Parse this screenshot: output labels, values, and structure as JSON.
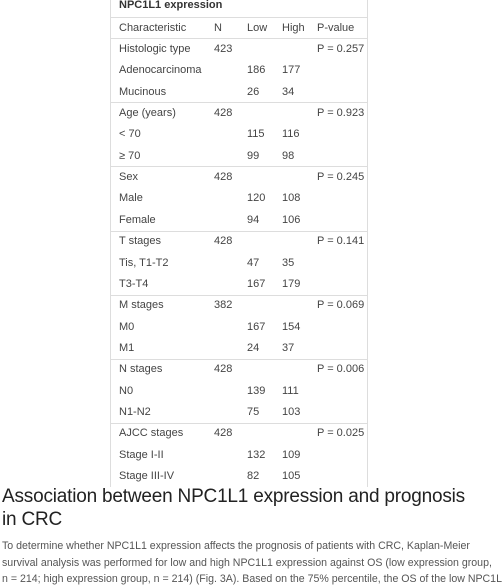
{
  "table": {
    "title": "NPC1L1 expression",
    "header": [
      "Characteristic",
      "N",
      "Low",
      "High",
      "P-value"
    ],
    "groups": [
      {
        "label": "Histologic type",
        "n": "423",
        "p": "P = 0.257",
        "rows": [
          {
            "label": "Adenocarcinoma",
            "low": "186",
            "high": "177"
          },
          {
            "label": "Mucinous",
            "low": "26",
            "high": "34"
          }
        ]
      },
      {
        "label": "Age (years)",
        "n": "428",
        "p": "P = 0.923",
        "rows": [
          {
            "label": "< 70",
            "low": "115",
            "high": "116"
          },
          {
            "label": "≥ 70",
            "low": "99",
            "high": "98"
          }
        ]
      },
      {
        "label": "Sex",
        "n": "428",
        "p": "P = 0.245",
        "rows": [
          {
            "label": "Male",
            "low": "120",
            "high": "108"
          },
          {
            "label": "Female",
            "low": "94",
            "high": "106"
          }
        ]
      },
      {
        "label": "T stages",
        "n": "428",
        "p": "P = 0.141",
        "rows": [
          {
            "label": "Tis, T1-T2",
            "low": "47",
            "high": "35"
          },
          {
            "label": "T3-T4",
            "low": "167",
            "high": "179"
          }
        ]
      },
      {
        "label": "M stages",
        "n": "382",
        "p": "P = 0.069",
        "rows": [
          {
            "label": "M0",
            "low": "167",
            "high": "154"
          },
          {
            "label": "M1",
            "low": "24",
            "high": "37"
          }
        ]
      },
      {
        "label": "N stages",
        "n": "428",
        "p": "P = 0.006",
        "rows": [
          {
            "label": "N0",
            "low": "139",
            "high": "111"
          },
          {
            "label": "N1-N2",
            "low": "75",
            "high": "103"
          }
        ]
      },
      {
        "label": "AJCC stages",
        "n": "428",
        "p": "P = 0.025",
        "rows": [
          {
            "label": "Stage I-II",
            "low": "132",
            "high": "109"
          },
          {
            "label": "Stage III-IV",
            "low": "82",
            "high": "105"
          }
        ]
      }
    ]
  },
  "section": {
    "heading": "Association between NPC1L1 expression and prognosis in CRC",
    "paragraph_lines": [
      "To determine whether NPC1L1 expression affects the prognosis of patients with CRC, Kaplan-Meier",
      "survival analysis was performed for low and high NPC1L1 expression against OS (low expression group,",
      "n = 214; high expression group, n = 214) (Fig. 3A). Based on the 75% percentile, the OS of the low NPC1L"
    ]
  }
}
